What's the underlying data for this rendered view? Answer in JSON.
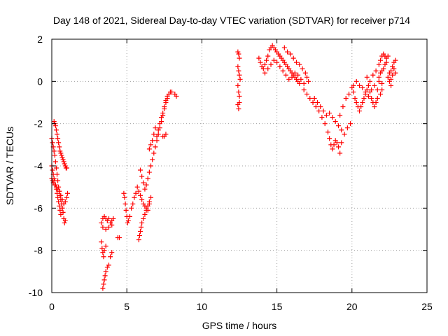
{
  "chart_data": {
    "type": "scatter",
    "title": "Day 148 of 2021, Sidereal Day-to-day VTEC variation (SDTVAR) for receiver p714",
    "xlabel": "GPS time / hours",
    "ylabel": "SDTVAR / TECUs",
    "xlim": [
      0,
      25
    ],
    "ylim": [
      -10,
      2
    ],
    "xticks": [
      0,
      5,
      10,
      15,
      20,
      25
    ],
    "yticks": [
      -10,
      -8,
      -6,
      -4,
      -2,
      0,
      2
    ],
    "grid": true,
    "marker": "+",
    "color": "#ff0000",
    "series": [
      {
        "values": [
          [
            0.0,
            -2.7
          ],
          [
            0.05,
            -2.9
          ],
          [
            0.1,
            -3.1
          ],
          [
            0.15,
            -3.3
          ],
          [
            0.2,
            -3.5
          ],
          [
            0.25,
            -3.8
          ],
          [
            0.3,
            -4.1
          ],
          [
            0.35,
            -4.4
          ],
          [
            0.4,
            -4.7
          ],
          [
            0.45,
            -5.0
          ],
          [
            0.5,
            -5.2
          ],
          [
            0.55,
            -5.4
          ],
          [
            0.6,
            -5.6
          ],
          [
            0.65,
            -5.8
          ],
          [
            0.7,
            -6.0
          ],
          [
            0.0,
            -4.0
          ],
          [
            0.05,
            -4.2
          ],
          [
            0.1,
            -4.4
          ],
          [
            0.15,
            -4.6
          ],
          [
            0.2,
            -4.7
          ],
          [
            0.25,
            -4.9
          ],
          [
            0.3,
            -5.1
          ],
          [
            0.35,
            -5.3
          ],
          [
            0.4,
            -5.5
          ],
          [
            0.45,
            -5.7
          ],
          [
            0.5,
            -5.9
          ],
          [
            0.55,
            -6.1
          ],
          [
            0.6,
            -6.3
          ],
          [
            0.7,
            -6.0
          ],
          [
            0.75,
            -6.2
          ],
          [
            0.8,
            -6.5
          ],
          [
            0.85,
            -6.7
          ],
          [
            0.9,
            -6.6
          ],
          [
            0.0,
            -4.6
          ],
          [
            0.05,
            -4.7
          ],
          [
            0.1,
            -4.8
          ],
          [
            0.2,
            -4.9
          ],
          [
            0.3,
            -5.0
          ],
          [
            0.4,
            -5.1
          ],
          [
            0.5,
            -5.2
          ],
          [
            0.6,
            -5.4
          ],
          [
            0.7,
            -5.6
          ],
          [
            0.8,
            -5.8
          ],
          [
            0.9,
            -5.7
          ],
          [
            1.0,
            -5.5
          ],
          [
            1.05,
            -5.3
          ],
          [
            0.15,
            -1.9
          ],
          [
            0.2,
            -2.0
          ],
          [
            0.25,
            -2.1
          ],
          [
            0.3,
            -2.3
          ],
          [
            0.35,
            -2.5
          ],
          [
            0.4,
            -2.7
          ],
          [
            0.45,
            -2.9
          ],
          [
            0.5,
            -3.1
          ],
          [
            0.55,
            -3.3
          ],
          [
            0.6,
            -3.4
          ],
          [
            0.65,
            -3.5
          ],
          [
            0.7,
            -3.6
          ],
          [
            0.75,
            -3.7
          ],
          [
            0.8,
            -3.8
          ],
          [
            0.85,
            -3.9
          ],
          [
            0.9,
            -4.0
          ],
          [
            0.95,
            -4.1
          ],
          [
            1.0,
            -4.1
          ],
          [
            3.3,
            -6.7
          ],
          [
            3.4,
            -6.5
          ],
          [
            3.5,
            -6.4
          ],
          [
            3.6,
            -6.5
          ],
          [
            3.7,
            -6.6
          ],
          [
            3.8,
            -6.5
          ],
          [
            3.9,
            -6.7
          ],
          [
            4.0,
            -6.6
          ],
          [
            4.1,
            -6.5
          ],
          [
            3.4,
            -6.9
          ],
          [
            3.6,
            -7.0
          ],
          [
            3.8,
            -6.9
          ],
          [
            4.0,
            -6.8
          ],
          [
            3.3,
            -7.6
          ],
          [
            3.35,
            -7.9
          ],
          [
            3.4,
            -8.1
          ],
          [
            3.45,
            -8.3
          ],
          [
            3.5,
            -8.0
          ],
          [
            3.6,
            -7.8
          ],
          [
            3.4,
            -9.8
          ],
          [
            3.45,
            -9.6
          ],
          [
            3.5,
            -9.4
          ],
          [
            3.55,
            -9.2
          ],
          [
            3.6,
            -9.0
          ],
          [
            3.7,
            -8.8
          ],
          [
            3.8,
            -8.7
          ],
          [
            3.9,
            -8.3
          ],
          [
            4.0,
            -8.1
          ],
          [
            4.4,
            -7.4
          ],
          [
            4.5,
            -7.4
          ],
          [
            4.8,
            -5.3
          ],
          [
            4.85,
            -5.5
          ],
          [
            4.9,
            -5.8
          ],
          [
            4.95,
            -6.1
          ],
          [
            5.0,
            -6.4
          ],
          [
            5.05,
            -6.7
          ],
          [
            5.1,
            -6.6
          ],
          [
            5.2,
            -6.4
          ],
          [
            5.3,
            -6.0
          ],
          [
            5.4,
            -5.8
          ],
          [
            5.5,
            -5.5
          ],
          [
            5.6,
            -5.3
          ],
          [
            5.7,
            -5.0
          ],
          [
            5.8,
            -5.2
          ],
          [
            5.9,
            -5.4
          ],
          [
            6.0,
            -5.6
          ],
          [
            6.1,
            -5.8
          ],
          [
            6.2,
            -5.9
          ],
          [
            6.3,
            -6.0
          ],
          [
            6.4,
            -6.1
          ],
          [
            6.5,
            -5.8
          ],
          [
            5.8,
            -7.5
          ],
          [
            5.85,
            -7.3
          ],
          [
            5.9,
            -7.1
          ],
          [
            5.95,
            -6.9
          ],
          [
            6.0,
            -6.7
          ],
          [
            6.1,
            -6.5
          ],
          [
            6.2,
            -6.3
          ],
          [
            6.3,
            -6.1
          ],
          [
            6.4,
            -5.9
          ],
          [
            6.5,
            -5.7
          ],
          [
            6.6,
            -5.5
          ],
          [
            5.9,
            -4.2
          ],
          [
            6.0,
            -4.5
          ],
          [
            6.1,
            -4.8
          ],
          [
            6.2,
            -5.1
          ],
          [
            6.3,
            -4.9
          ],
          [
            6.4,
            -4.6
          ],
          [
            6.5,
            -4.3
          ],
          [
            6.6,
            -4.0
          ],
          [
            6.7,
            -3.7
          ],
          [
            6.8,
            -3.4
          ],
          [
            6.9,
            -3.1
          ],
          [
            7.0,
            -2.8
          ],
          [
            7.1,
            -2.5
          ],
          [
            7.2,
            -2.2
          ],
          [
            7.3,
            -1.9
          ],
          [
            7.4,
            -1.6
          ],
          [
            7.5,
            -1.3
          ],
          [
            7.6,
            -1.0
          ],
          [
            7.7,
            -0.8
          ],
          [
            7.8,
            -0.6
          ],
          [
            7.9,
            -0.5
          ],
          [
            8.0,
            -0.5
          ],
          [
            8.2,
            -0.6
          ],
          [
            8.3,
            -0.7
          ],
          [
            6.5,
            -3.2
          ],
          [
            6.6,
            -3.0
          ],
          [
            6.7,
            -2.8
          ],
          [
            6.8,
            -2.5
          ],
          [
            6.9,
            -2.2
          ],
          [
            7.0,
            -2.6
          ],
          [
            7.1,
            -2.3
          ],
          [
            7.2,
            -2.0
          ],
          [
            7.3,
            -1.7
          ],
          [
            7.4,
            -1.5
          ],
          [
            7.5,
            -1.2
          ],
          [
            7.6,
            -0.9
          ],
          [
            7.7,
            -0.7
          ],
          [
            7.4,
            -2.6
          ],
          [
            7.5,
            -2.6
          ],
          [
            7.6,
            -2.5
          ],
          [
            12.4,
            1.4
          ],
          [
            12.45,
            1.3
          ],
          [
            12.5,
            1.1
          ],
          [
            12.4,
            0.7
          ],
          [
            12.45,
            0.5
          ],
          [
            12.5,
            0.3
          ],
          [
            12.55,
            0.1
          ],
          [
            12.4,
            -0.2
          ],
          [
            12.45,
            -0.5
          ],
          [
            12.5,
            -0.7
          ],
          [
            12.4,
            -1.1
          ],
          [
            12.45,
            -1.3
          ],
          [
            12.5,
            -1.0
          ],
          [
            13.8,
            1.1
          ],
          [
            13.9,
            0.9
          ],
          [
            14.0,
            0.7
          ],
          [
            14.1,
            0.6
          ],
          [
            14.2,
            0.8
          ],
          [
            14.3,
            1.0
          ],
          [
            14.4,
            1.2
          ],
          [
            14.5,
            1.5
          ],
          [
            14.6,
            1.6
          ],
          [
            14.7,
            1.7
          ],
          [
            14.8,
            1.6
          ],
          [
            14.9,
            1.5
          ],
          [
            15.0,
            1.4
          ],
          [
            15.1,
            1.3
          ],
          [
            15.2,
            1.2
          ],
          [
            15.3,
            1.1
          ],
          [
            15.4,
            1.0
          ],
          [
            15.5,
            0.9
          ],
          [
            15.6,
            0.8
          ],
          [
            15.7,
            0.7
          ],
          [
            15.8,
            0.6
          ],
          [
            15.9,
            0.5
          ],
          [
            16.0,
            0.4
          ],
          [
            16.1,
            0.3
          ],
          [
            16.2,
            0.2
          ],
          [
            16.3,
            0.1
          ],
          [
            16.4,
            0.0
          ],
          [
            16.5,
            -0.1
          ],
          [
            14.2,
            0.4
          ],
          [
            14.4,
            0.6
          ],
          [
            14.6,
            0.8
          ],
          [
            14.8,
            1.0
          ],
          [
            15.0,
            0.9
          ],
          [
            15.2,
            0.7
          ],
          [
            15.4,
            0.5
          ],
          [
            15.6,
            0.3
          ],
          [
            15.8,
            0.1
          ],
          [
            16.0,
            0.2
          ],
          [
            16.2,
            0.4
          ],
          [
            16.4,
            0.3
          ],
          [
            16.6,
            0.1
          ],
          [
            16.8,
            -0.1
          ],
          [
            15.5,
            1.6
          ],
          [
            15.7,
            1.4
          ],
          [
            15.9,
            1.3
          ],
          [
            16.1,
            1.1
          ],
          [
            16.3,
            0.9
          ],
          [
            16.5,
            0.8
          ],
          [
            16.7,
            0.6
          ],
          [
            16.9,
            0.4
          ],
          [
            17.0,
            0.2
          ],
          [
            17.1,
            0.0
          ],
          [
            16.8,
            -0.4
          ],
          [
            17.0,
            -0.6
          ],
          [
            17.2,
            -0.8
          ],
          [
            17.4,
            -1.0
          ],
          [
            17.6,
            -1.2
          ],
          [
            17.8,
            -1.4
          ],
          [
            18.0,
            -1.7
          ],
          [
            18.2,
            -2.0
          ],
          [
            18.4,
            -2.4
          ],
          [
            18.5,
            -2.7
          ],
          [
            18.6,
            -3.0
          ],
          [
            18.7,
            -3.2
          ],
          [
            18.8,
            -3.0
          ],
          [
            18.9,
            -2.8
          ],
          [
            19.0,
            -2.9
          ],
          [
            19.1,
            -3.1
          ],
          [
            19.2,
            -3.4
          ],
          [
            19.3,
            -2.9
          ],
          [
            17.5,
            -0.8
          ],
          [
            17.7,
            -1.0
          ],
          [
            17.9,
            -1.2
          ],
          [
            18.1,
            -1.4
          ],
          [
            18.3,
            -1.6
          ],
          [
            18.5,
            -1.5
          ],
          [
            18.7,
            -1.7
          ],
          [
            18.9,
            -1.9
          ],
          [
            19.1,
            -2.1
          ],
          [
            19.3,
            -2.3
          ],
          [
            19.5,
            -2.5
          ],
          [
            19.7,
            -2.2
          ],
          [
            19.9,
            -2.0
          ],
          [
            19.2,
            -1.6
          ],
          [
            19.4,
            -1.2
          ],
          [
            19.6,
            -0.8
          ],
          [
            19.8,
            -0.6
          ],
          [
            20.0,
            -0.3
          ],
          [
            20.1,
            -0.5
          ],
          [
            20.2,
            -0.8
          ],
          [
            20.3,
            -1.0
          ],
          [
            20.4,
            -1.2
          ],
          [
            20.5,
            -1.4
          ],
          [
            20.6,
            -1.2
          ],
          [
            20.7,
            -1.0
          ],
          [
            20.8,
            -0.8
          ],
          [
            20.9,
            -0.6
          ],
          [
            21.0,
            -0.4
          ],
          [
            21.1,
            -0.2
          ],
          [
            21.2,
            -0.5
          ],
          [
            21.3,
            -0.8
          ],
          [
            21.4,
            -1.0
          ],
          [
            21.5,
            -1.2
          ],
          [
            21.6,
            -1.0
          ],
          [
            21.7,
            -0.8
          ],
          [
            20.1,
            -0.2
          ],
          [
            20.3,
            0.0
          ],
          [
            20.5,
            -0.2
          ],
          [
            20.7,
            -0.3
          ],
          [
            20.9,
            -0.5
          ],
          [
            21.1,
            -0.7
          ],
          [
            21.3,
            -0.4
          ],
          [
            21.5,
            -0.2
          ],
          [
            21.7,
            -0.4
          ],
          [
            21.9,
            -0.6
          ],
          [
            22.0,
            -0.4
          ],
          [
            21.8,
            0.8
          ],
          [
            21.9,
            1.0
          ],
          [
            22.0,
            1.2
          ],
          [
            22.1,
            1.3
          ],
          [
            22.2,
            1.2
          ],
          [
            22.3,
            1.1
          ],
          [
            22.4,
            1.2
          ],
          [
            21.8,
            0.2
          ],
          [
            21.9,
            0.4
          ],
          [
            22.0,
            0.5
          ],
          [
            22.1,
            0.6
          ],
          [
            22.2,
            0.8
          ],
          [
            22.3,
            0.9
          ],
          [
            22.4,
            0.2
          ],
          [
            22.5,
            0.0
          ],
          [
            22.6,
            -0.2
          ],
          [
            22.5,
            0.4
          ],
          [
            22.6,
            0.5
          ],
          [
            22.7,
            0.7
          ],
          [
            22.8,
            0.9
          ],
          [
            22.9,
            1.0
          ],
          [
            22.6,
            0.1
          ],
          [
            22.7,
            0.3
          ],
          [
            22.8,
            0.6
          ],
          [
            22.9,
            0.4
          ],
          [
            21.0,
            0.2
          ],
          [
            21.2,
            0.0
          ],
          [
            21.4,
            0.3
          ],
          [
            21.6,
            0.5
          ],
          [
            21.8,
            0.0
          ],
          [
            22.0,
            -0.1
          ]
        ]
      }
    ]
  }
}
